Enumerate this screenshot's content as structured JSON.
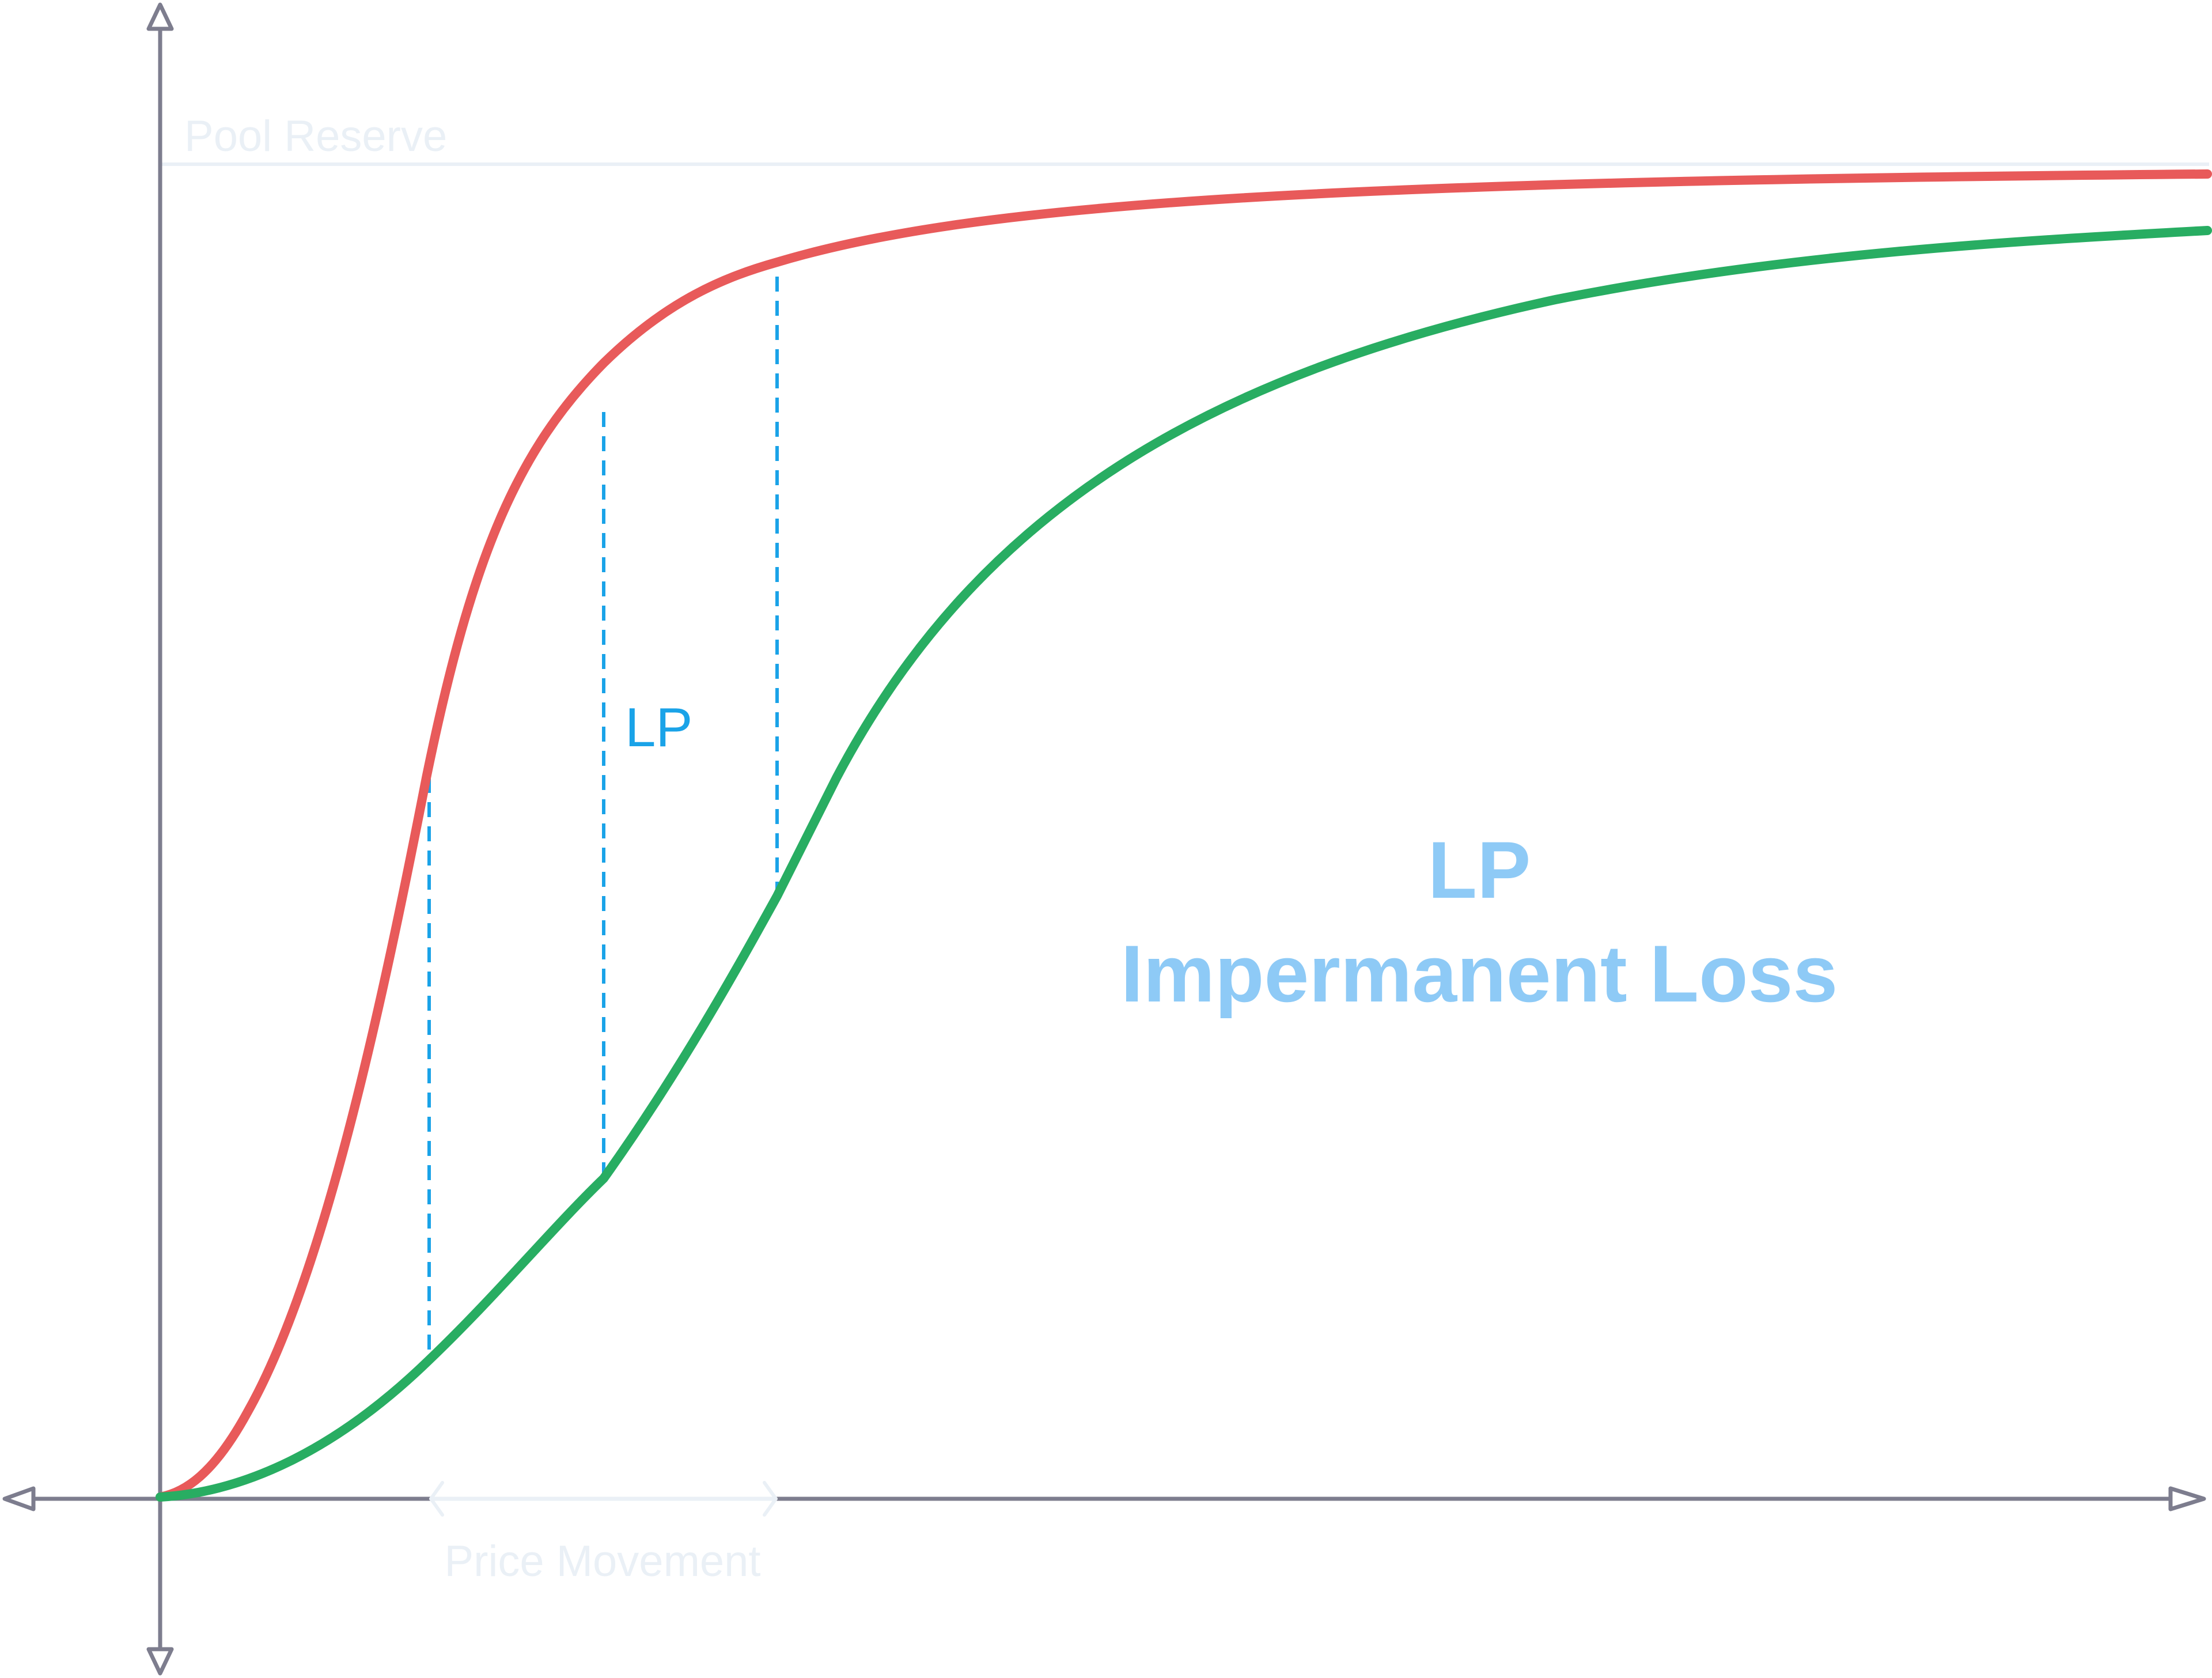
{
  "labels": {
    "pool_reserve": "Pool Reserve",
    "price_movement": "Price Movement",
    "gap_label": "LP",
    "legend_title": "LP",
    "legend_subtitle": "Impermanent Loss"
  },
  "colors": {
    "background": "#ffffff",
    "axis": "#7d7d8e",
    "faint": "#eaf0f6",
    "red_curve": "#e85a5a",
    "green_curve": "#28ad62",
    "dashed": "#1aa3e8",
    "lp_small": "#1aa3e8",
    "legend_text": "#8ecaf6"
  },
  "icons": {
    "axis_arrows": "outline-triangle-arrowhead",
    "range_arrows": "chevron"
  }
}
